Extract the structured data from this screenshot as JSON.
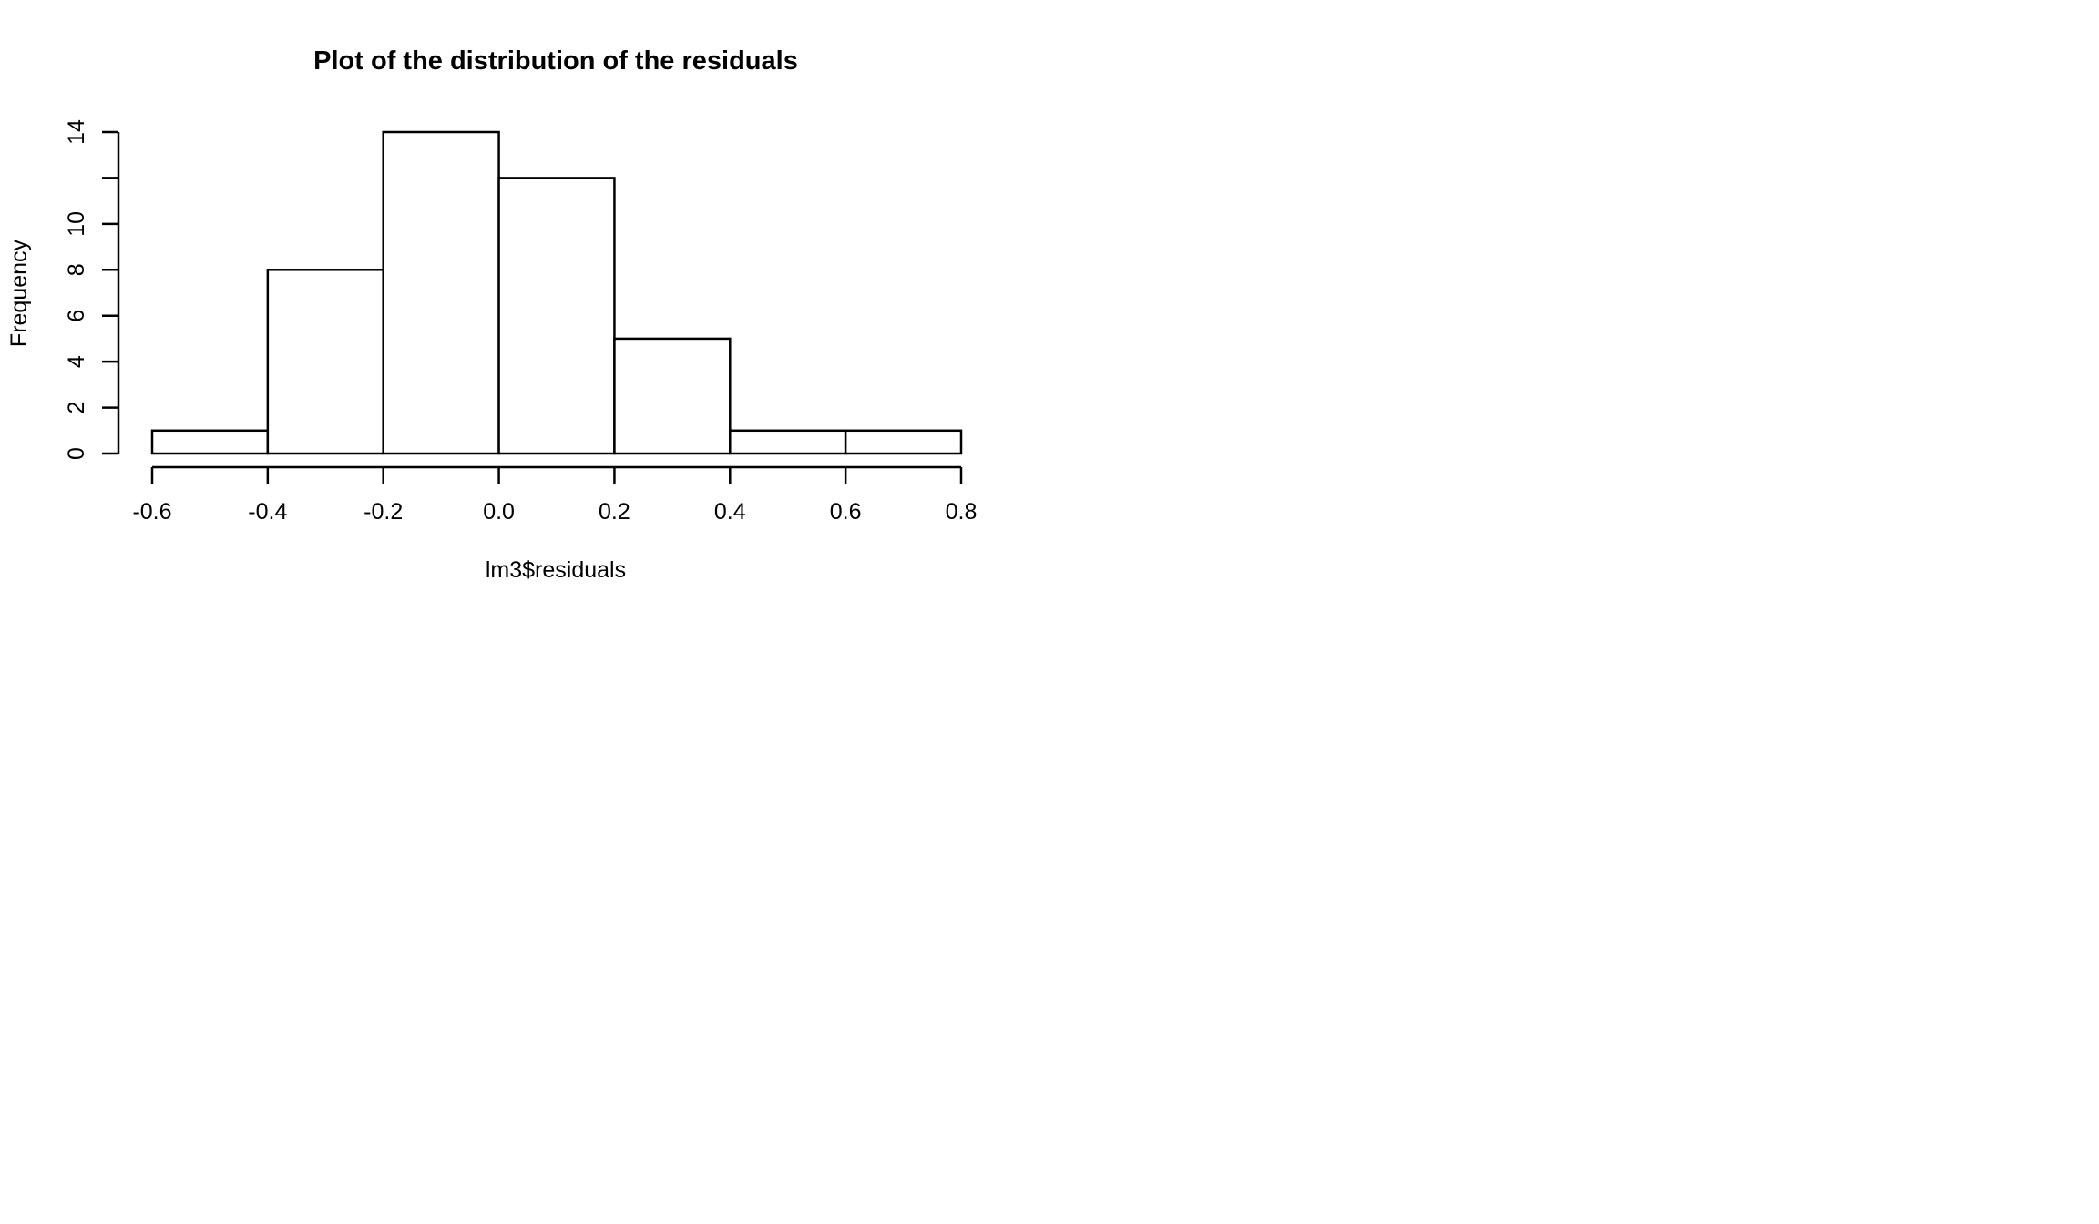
{
  "chart_data": {
    "type": "bar",
    "title": "Plot of the distribution of the residuals",
    "xlabel": "lm3$residuals",
    "ylabel": "Frequency",
    "bins": [
      {
        "x0": -0.6,
        "x1": -0.4,
        "count": 1
      },
      {
        "x0": -0.4,
        "x1": -0.2,
        "count": 8
      },
      {
        "x0": -0.2,
        "x1": 0.0,
        "count": 14
      },
      {
        "x0": 0.0,
        "x1": 0.2,
        "count": 12
      },
      {
        "x0": 0.2,
        "x1": 0.4,
        "count": 5
      },
      {
        "x0": 0.4,
        "x1": 0.6,
        "count": 1
      },
      {
        "x0": 0.6,
        "x1": 0.8,
        "count": 1
      }
    ],
    "xlim": [
      -0.6,
      0.8
    ],
    "ylim": [
      0,
      14
    ],
    "x_ticks": [
      {
        "value": -0.6,
        "label": "-0.6"
      },
      {
        "value": -0.4,
        "label": "-0.4"
      },
      {
        "value": -0.2,
        "label": "-0.2"
      },
      {
        "value": 0.0,
        "label": "0.0"
      },
      {
        "value": 0.2,
        "label": "0.2"
      },
      {
        "value": 0.4,
        "label": "0.4"
      },
      {
        "value": 0.6,
        "label": "0.6"
      },
      {
        "value": 0.8,
        "label": "0.8"
      }
    ],
    "y_ticks": [
      {
        "value": 0,
        "label": "0"
      },
      {
        "value": 2,
        "label": "2"
      },
      {
        "value": 4,
        "label": "4"
      },
      {
        "value": 6,
        "label": "6"
      },
      {
        "value": 8,
        "label": "8"
      },
      {
        "value": 10,
        "label": "10"
      },
      {
        "value": 12,
        "label": ""
      },
      {
        "value": 14,
        "label": "14"
      }
    ],
    "grid": false,
    "legend": "none",
    "colors": {
      "bar_fill": "#ffffff",
      "bar_stroke": "#000000",
      "background": "#ffffff"
    }
  }
}
